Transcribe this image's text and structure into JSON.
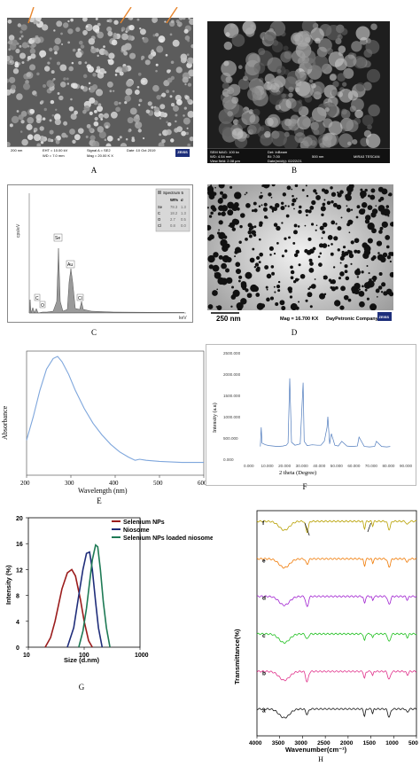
{
  "panels": {
    "A": {
      "label": "A",
      "info": {
        "scale": "200 nm",
        "eht": "EHT = 10.00 kV",
        "wd": "WD = 7.0 mm",
        "signal": "Signal A = SE2",
        "mag": "Mag = 20.00 K X",
        "date": "Date :10 Oct 2019"
      },
      "logo": "ZEISS"
    },
    "B": {
      "label": "B",
      "info": {
        "sem_mag": "SEM MAG: 100 kx",
        "wd": "WD: 4.54 mm",
        "view": "View field: 2.08 μm",
        "det": "Det: InBeam",
        "bi": "BI: 7.00",
        "date": "Date(m/d/y): 02/22/21",
        "scale": "500 nm",
        "brand": "MIRA3 TESCAN"
      }
    },
    "C": {
      "label": "C",
      "spectrum": "Spectrum 5",
      "ylabel": "cps/eV",
      "xlabel": "keV",
      "table": {
        "headers": [
          "",
          "Wt%",
          "σ"
        ],
        "rows": [
          [
            "Se",
            "78.3",
            "1.3"
          ],
          [
            "C",
            "18.2",
            "1.3"
          ],
          [
            "O",
            "2.7",
            "0.5"
          ],
          [
            "Cl",
            "0.8",
            "0.0"
          ]
        ]
      },
      "peaks": [
        "C",
        "O",
        "Se",
        "Au",
        "Cl"
      ]
    },
    "D": {
      "label": "D",
      "scale": "250 nm",
      "mag": "Mag = 16.700 KX",
      "company": "DayPetronic Company",
      "logo": "ZEISS"
    },
    "E": {
      "label": "E"
    },
    "F": {
      "label": "F"
    },
    "G": {
      "label": "G"
    },
    "H": {
      "label": "H"
    }
  },
  "chart_data": [
    {
      "panel": "E",
      "type": "line",
      "title": "",
      "xlabel": "Wavelength (nm)",
      "ylabel": "Absorbance",
      "xlim": [
        200,
        600
      ],
      "xticks": [
        200,
        300,
        400,
        500,
        600
      ],
      "color": "#7ea6dc",
      "series": [
        {
          "x": [
            200,
            215,
            230,
            245,
            260,
            270,
            280,
            295,
            310,
            330,
            350,
            370,
            390,
            410,
            430,
            445,
            455,
            470,
            500,
            550,
            600
          ],
          "y": [
            0.28,
            0.5,
            0.75,
            0.95,
            1.05,
            1.07,
            1.02,
            0.9,
            0.75,
            0.58,
            0.44,
            0.33,
            0.24,
            0.17,
            0.12,
            0.09,
            0.1,
            0.09,
            0.08,
            0.07,
            0.07
          ]
        }
      ]
    },
    {
      "panel": "F",
      "type": "line",
      "title": "",
      "xlabel": "2 theta (Degree)",
      "ylabel": "Intensity (a.u)",
      "xlim": [
        0,
        90
      ],
      "ylim": [
        0,
        2500
      ],
      "xtick_labels": [
        "0.000",
        "10.000",
        "20.000",
        "30.000",
        "40.000",
        "50.000",
        "60.000",
        "70.000",
        "80.000",
        "90.000"
      ],
      "ytick_labels": [
        "0.000",
        "500.000",
        "1000.000",
        "1500.000",
        "2000.000",
        "2500.000"
      ],
      "color": "#4f7bbd",
      "series": [
        {
          "x": [
            5,
            5.5,
            6,
            8,
            10,
            15,
            18,
            20,
            21,
            22,
            23,
            25,
            28,
            29.7,
            30.3,
            32,
            35,
            38,
            40,
            42,
            43.5,
            44,
            45,
            46,
            48,
            50,
            52,
            55,
            58,
            61,
            62,
            65,
            68,
            71,
            72,
            75,
            78,
            80
          ],
          "y": [
            300,
            750,
            380,
            340,
            320,
            300,
            310,
            330,
            380,
            1900,
            400,
            330,
            360,
            1800,
            420,
            320,
            340,
            330,
            330,
            430,
            750,
            1000,
            360,
            600,
            330,
            310,
            420,
            310,
            300,
            310,
            520,
            300,
            290,
            300,
            420,
            300,
            290,
            300
          ]
        }
      ]
    },
    {
      "panel": "G",
      "type": "line",
      "title": "",
      "xlabel": "Size (d.nm)",
      "ylabel": "Intensity (%)",
      "xscale": "log",
      "xlim": [
        10,
        1000
      ],
      "ylim": [
        0,
        20
      ],
      "xticks": [
        10,
        100,
        1000
      ],
      "yticks": [
        0,
        4,
        8,
        12,
        16,
        20
      ],
      "legend_position": "top-right",
      "series": [
        {
          "name": "Selenium NPs",
          "color": "#9b1c1c",
          "x": [
            20,
            25,
            30,
            40,
            50,
            60,
            70,
            85,
            100,
            120,
            140
          ],
          "y": [
            0,
            1.5,
            4,
            9,
            11.5,
            12,
            11,
            7.5,
            4,
            1,
            0
          ]
        },
        {
          "name": "Niosome",
          "color": "#1f2d7a",
          "x": [
            50,
            65,
            80,
            95,
            110,
            125,
            140,
            160,
            180,
            210
          ],
          "y": [
            0,
            3,
            8,
            12,
            14.5,
            14.7,
            12,
            7,
            3,
            0
          ]
        },
        {
          "name": "Selenium NPs loaded niosome",
          "color": "#1e7a55",
          "x": [
            80,
            95,
            110,
            125,
            140,
            160,
            175,
            195,
            220,
            250,
            290
          ],
          "y": [
            0,
            2.5,
            6,
            10,
            13.5,
            15.8,
            15.5,
            12,
            7,
            3,
            0
          ]
        }
      ]
    },
    {
      "panel": "H",
      "type": "line",
      "title": "",
      "xlabel": "Wavenumber(cm⁻¹)",
      "ylabel": "Transmittance(%)",
      "xlim": [
        4000,
        500
      ],
      "xticks": [
        4000,
        3500,
        3000,
        2500,
        2000,
        1500,
        1000,
        500
      ],
      "series_labels": [
        "f",
        "e",
        "d",
        "c",
        "b",
        "a"
      ],
      "series_colors": [
        "#b8a000",
        "#f07800",
        "#a020d0",
        "#20c020",
        "#e0308a",
        "#111111"
      ]
    }
  ]
}
